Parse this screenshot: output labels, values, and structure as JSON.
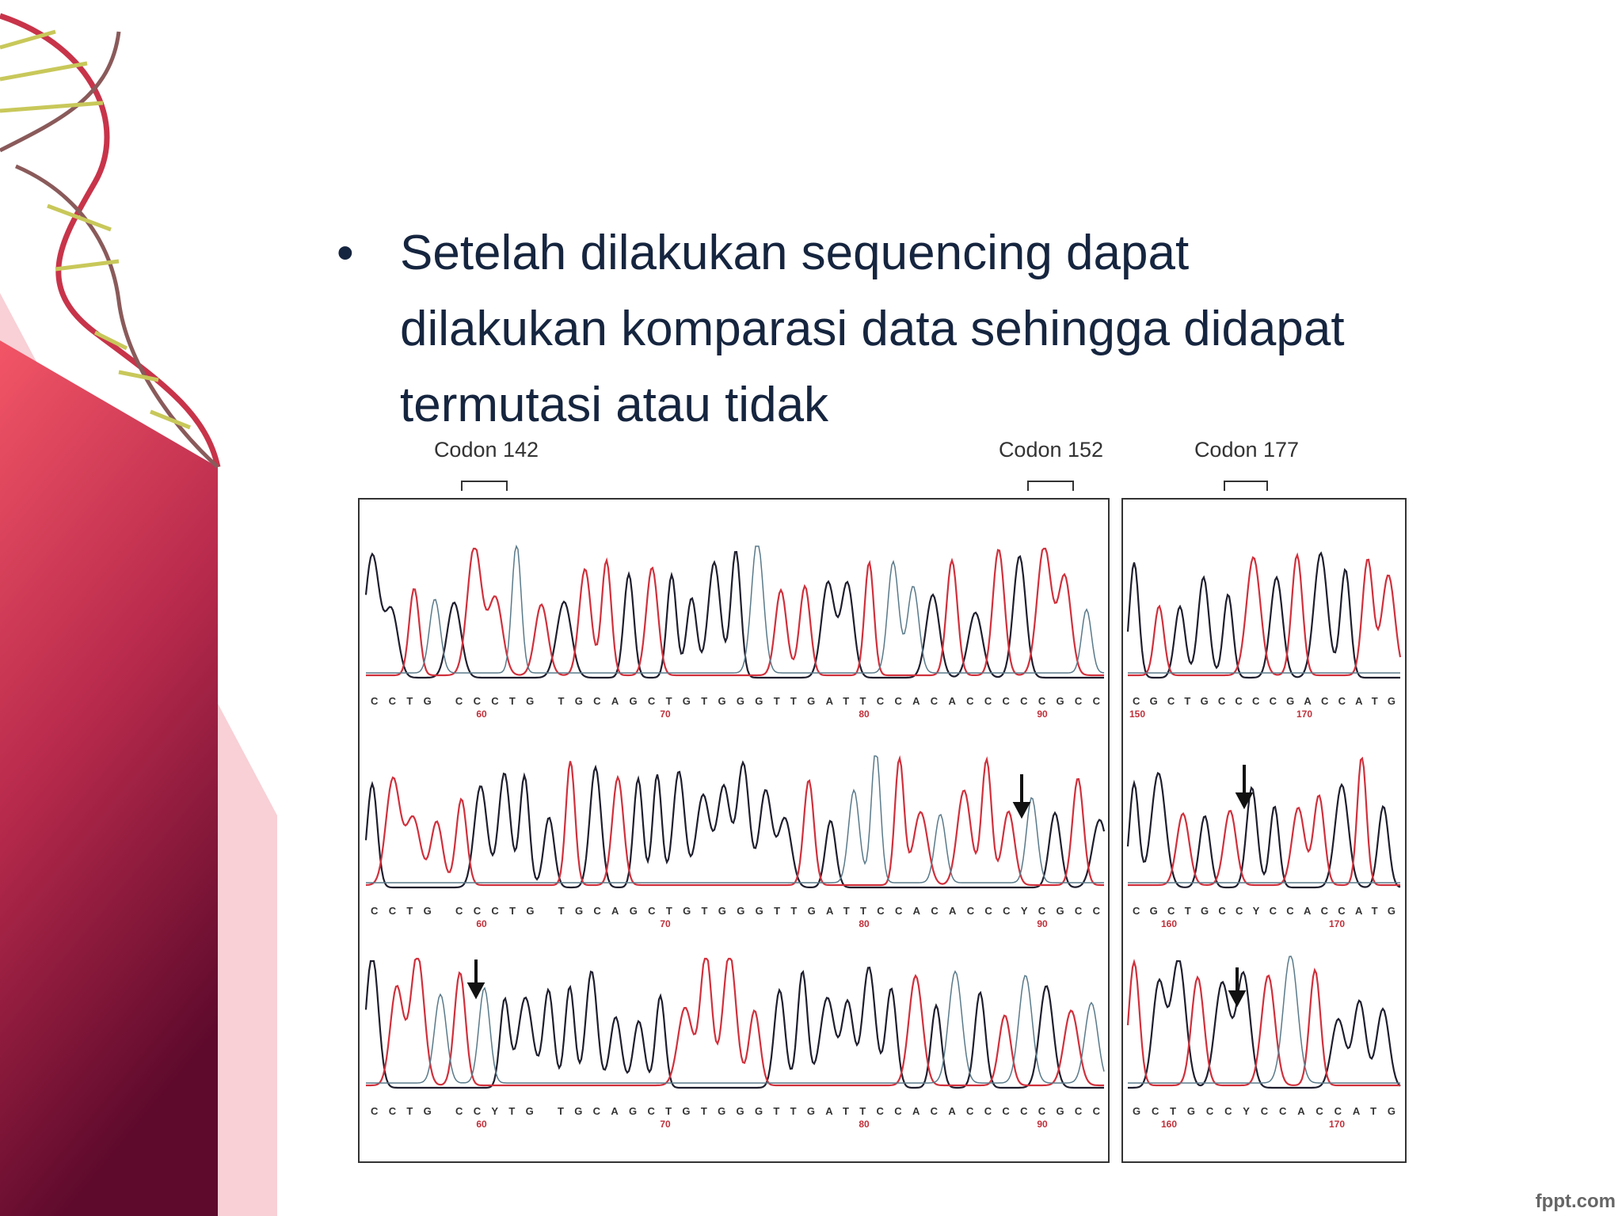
{
  "slide": {
    "bullet_lines": [
      "Setelah dilakukan sequencing dapat",
      "dilakukan komparasi data sehingga didapat",
      "termutasi atau tidak"
    ],
    "figure": {
      "codons": [
        "Codon 142",
        "Codon 152",
        "Codon 177"
      ],
      "rows": [
        {
          "left_seq": "CCTG CCCTG TGCAGCTGTGGGTTGATTCCACACCCCCGCC",
          "left_numbers": [
            "60",
            "70",
            "80",
            "90"
          ],
          "right_seq": "CGCTGCCCCGACCATG",
          "right_numbers": [
            "150",
            "170"
          ]
        },
        {
          "left_seq": "CCTG CCCTG TGCAGCTGTGGGTTGATTCCACACCCYCGCC",
          "left_numbers": [
            "60",
            "70",
            "80",
            "90"
          ],
          "right_seq": "CGCTGCCYCCACCATG",
          "right_numbers": [
            "160",
            "170"
          ]
        },
        {
          "left_seq": "CCTG CCYTG TGCAGCTGTGGGTTGATTCCACACCCCCGCC",
          "left_numbers": [
            "60",
            "70",
            "80",
            "90"
          ],
          "right_seq": "GCTGCCYCCACCATG",
          "right_numbers": [
            "160",
            "170"
          ]
        }
      ]
    },
    "watermark": "fppt.com"
  }
}
